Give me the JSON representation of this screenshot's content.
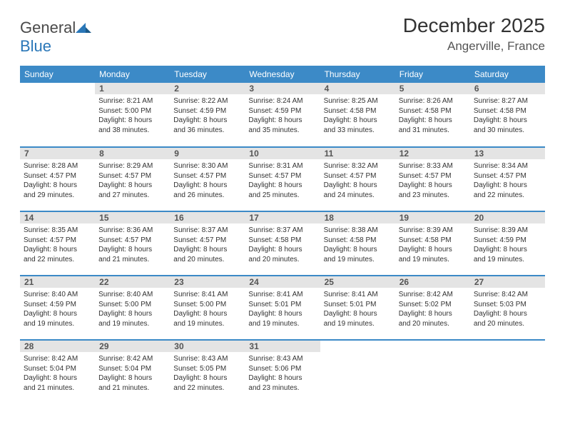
{
  "logo": {
    "text1": "General",
    "text2": "Blue"
  },
  "title": "December 2025",
  "location": "Angerville, France",
  "colors": {
    "header_bg": "#3c8ac7",
    "header_text": "#ffffff",
    "daynum_bg": "#e4e4e4",
    "border": "#3c8ac7",
    "logo_gray": "#4a4a4a",
    "logo_blue": "#2a77b8"
  },
  "weekdays": [
    "Sunday",
    "Monday",
    "Tuesday",
    "Wednesday",
    "Thursday",
    "Friday",
    "Saturday"
  ],
  "weeks": [
    [
      null,
      {
        "n": "1",
        "sr": "Sunrise: 8:21 AM",
        "ss": "Sunset: 5:00 PM",
        "d1": "Daylight: 8 hours",
        "d2": "and 38 minutes."
      },
      {
        "n": "2",
        "sr": "Sunrise: 8:22 AM",
        "ss": "Sunset: 4:59 PM",
        "d1": "Daylight: 8 hours",
        "d2": "and 36 minutes."
      },
      {
        "n": "3",
        "sr": "Sunrise: 8:24 AM",
        "ss": "Sunset: 4:59 PM",
        "d1": "Daylight: 8 hours",
        "d2": "and 35 minutes."
      },
      {
        "n": "4",
        "sr": "Sunrise: 8:25 AM",
        "ss": "Sunset: 4:58 PM",
        "d1": "Daylight: 8 hours",
        "d2": "and 33 minutes."
      },
      {
        "n": "5",
        "sr": "Sunrise: 8:26 AM",
        "ss": "Sunset: 4:58 PM",
        "d1": "Daylight: 8 hours",
        "d2": "and 31 minutes."
      },
      {
        "n": "6",
        "sr": "Sunrise: 8:27 AM",
        "ss": "Sunset: 4:58 PM",
        "d1": "Daylight: 8 hours",
        "d2": "and 30 minutes."
      }
    ],
    [
      {
        "n": "7",
        "sr": "Sunrise: 8:28 AM",
        "ss": "Sunset: 4:57 PM",
        "d1": "Daylight: 8 hours",
        "d2": "and 29 minutes."
      },
      {
        "n": "8",
        "sr": "Sunrise: 8:29 AM",
        "ss": "Sunset: 4:57 PM",
        "d1": "Daylight: 8 hours",
        "d2": "and 27 minutes."
      },
      {
        "n": "9",
        "sr": "Sunrise: 8:30 AM",
        "ss": "Sunset: 4:57 PM",
        "d1": "Daylight: 8 hours",
        "d2": "and 26 minutes."
      },
      {
        "n": "10",
        "sr": "Sunrise: 8:31 AM",
        "ss": "Sunset: 4:57 PM",
        "d1": "Daylight: 8 hours",
        "d2": "and 25 minutes."
      },
      {
        "n": "11",
        "sr": "Sunrise: 8:32 AM",
        "ss": "Sunset: 4:57 PM",
        "d1": "Daylight: 8 hours",
        "d2": "and 24 minutes."
      },
      {
        "n": "12",
        "sr": "Sunrise: 8:33 AM",
        "ss": "Sunset: 4:57 PM",
        "d1": "Daylight: 8 hours",
        "d2": "and 23 minutes."
      },
      {
        "n": "13",
        "sr": "Sunrise: 8:34 AM",
        "ss": "Sunset: 4:57 PM",
        "d1": "Daylight: 8 hours",
        "d2": "and 22 minutes."
      }
    ],
    [
      {
        "n": "14",
        "sr": "Sunrise: 8:35 AM",
        "ss": "Sunset: 4:57 PM",
        "d1": "Daylight: 8 hours",
        "d2": "and 22 minutes."
      },
      {
        "n": "15",
        "sr": "Sunrise: 8:36 AM",
        "ss": "Sunset: 4:57 PM",
        "d1": "Daylight: 8 hours",
        "d2": "and 21 minutes."
      },
      {
        "n": "16",
        "sr": "Sunrise: 8:37 AM",
        "ss": "Sunset: 4:57 PM",
        "d1": "Daylight: 8 hours",
        "d2": "and 20 minutes."
      },
      {
        "n": "17",
        "sr": "Sunrise: 8:37 AM",
        "ss": "Sunset: 4:58 PM",
        "d1": "Daylight: 8 hours",
        "d2": "and 20 minutes."
      },
      {
        "n": "18",
        "sr": "Sunrise: 8:38 AM",
        "ss": "Sunset: 4:58 PM",
        "d1": "Daylight: 8 hours",
        "d2": "and 19 minutes."
      },
      {
        "n": "19",
        "sr": "Sunrise: 8:39 AM",
        "ss": "Sunset: 4:58 PM",
        "d1": "Daylight: 8 hours",
        "d2": "and 19 minutes."
      },
      {
        "n": "20",
        "sr": "Sunrise: 8:39 AM",
        "ss": "Sunset: 4:59 PM",
        "d1": "Daylight: 8 hours",
        "d2": "and 19 minutes."
      }
    ],
    [
      {
        "n": "21",
        "sr": "Sunrise: 8:40 AM",
        "ss": "Sunset: 4:59 PM",
        "d1": "Daylight: 8 hours",
        "d2": "and 19 minutes."
      },
      {
        "n": "22",
        "sr": "Sunrise: 8:40 AM",
        "ss": "Sunset: 5:00 PM",
        "d1": "Daylight: 8 hours",
        "d2": "and 19 minutes."
      },
      {
        "n": "23",
        "sr": "Sunrise: 8:41 AM",
        "ss": "Sunset: 5:00 PM",
        "d1": "Daylight: 8 hours",
        "d2": "and 19 minutes."
      },
      {
        "n": "24",
        "sr": "Sunrise: 8:41 AM",
        "ss": "Sunset: 5:01 PM",
        "d1": "Daylight: 8 hours",
        "d2": "and 19 minutes."
      },
      {
        "n": "25",
        "sr": "Sunrise: 8:41 AM",
        "ss": "Sunset: 5:01 PM",
        "d1": "Daylight: 8 hours",
        "d2": "and 19 minutes."
      },
      {
        "n": "26",
        "sr": "Sunrise: 8:42 AM",
        "ss": "Sunset: 5:02 PM",
        "d1": "Daylight: 8 hours",
        "d2": "and 20 minutes."
      },
      {
        "n": "27",
        "sr": "Sunrise: 8:42 AM",
        "ss": "Sunset: 5:03 PM",
        "d1": "Daylight: 8 hours",
        "d2": "and 20 minutes."
      }
    ],
    [
      {
        "n": "28",
        "sr": "Sunrise: 8:42 AM",
        "ss": "Sunset: 5:04 PM",
        "d1": "Daylight: 8 hours",
        "d2": "and 21 minutes."
      },
      {
        "n": "29",
        "sr": "Sunrise: 8:42 AM",
        "ss": "Sunset: 5:04 PM",
        "d1": "Daylight: 8 hours",
        "d2": "and 21 minutes."
      },
      {
        "n": "30",
        "sr": "Sunrise: 8:43 AM",
        "ss": "Sunset: 5:05 PM",
        "d1": "Daylight: 8 hours",
        "d2": "and 22 minutes."
      },
      {
        "n": "31",
        "sr": "Sunrise: 8:43 AM",
        "ss": "Sunset: 5:06 PM",
        "d1": "Daylight: 8 hours",
        "d2": "and 23 minutes."
      },
      null,
      null,
      null
    ]
  ]
}
